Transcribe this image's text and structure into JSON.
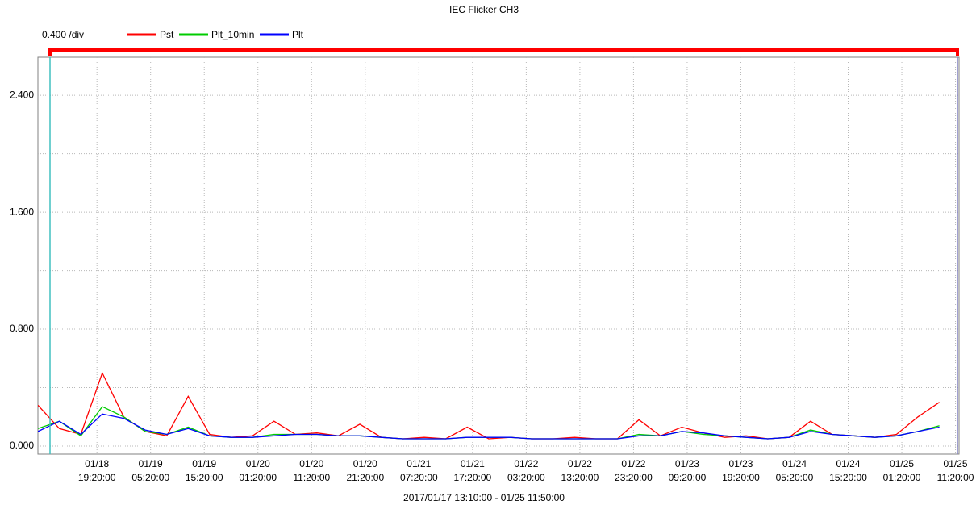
{
  "chart_data": {
    "type": "line",
    "title": "IEC Flicker  CH3",
    "scale_label": "0.400  /div",
    "xlabel": "2017/01/17 13:10:00 - 01/25 11:50:00",
    "x": [
      "01/18 08:20:00",
      "01/18 12:20:00",
      "01/18 16:20:00",
      "01/18 20:20:00",
      "01/19 00:20:00",
      "01/19 04:20:00",
      "01/19 08:20:00",
      "01/19 12:20:00",
      "01/19 16:20:00",
      "01/19 20:20:00",
      "01/20 00:20:00",
      "01/20 04:20:00",
      "01/20 08:20:00",
      "01/20 12:20:00",
      "01/20 16:20:00",
      "01/20 20:20:00",
      "01/21 00:20:00",
      "01/21 04:20:00",
      "01/21 08:20:00",
      "01/21 12:20:00",
      "01/21 16:20:00",
      "01/21 20:20:00",
      "01/22 00:20:00",
      "01/22 04:20:00",
      "01/22 08:20:00",
      "01/22 12:20:00",
      "01/22 16:20:00",
      "01/22 20:20:00",
      "01/23 00:20:00",
      "01/23 04:20:00",
      "01/23 08:20:00",
      "01/23 12:20:00",
      "01/23 16:20:00",
      "01/23 20:20:00",
      "01/24 00:20:00",
      "01/24 04:20:00",
      "01/24 08:20:00",
      "01/24 12:20:00",
      "01/24 16:20:00",
      "01/24 20:20:00",
      "01/25 00:20:00",
      "01/25 04:20:00",
      "01/25 08:20:00"
    ],
    "series": [
      {
        "name": "Pst",
        "color": "#ff0000",
        "values": [
          0.28,
          0.12,
          0.08,
          0.5,
          0.2,
          0.1,
          0.07,
          0.34,
          0.08,
          0.06,
          0.07,
          0.17,
          0.08,
          0.09,
          0.07,
          0.15,
          0.06,
          0.05,
          0.06,
          0.05,
          0.13,
          0.05,
          0.06,
          0.05,
          0.05,
          0.06,
          0.05,
          0.05,
          0.18,
          0.07,
          0.13,
          0.09,
          0.06,
          0.07,
          0.05,
          0.06,
          0.17,
          0.08,
          0.07,
          0.06,
          0.08,
          0.2,
          0.3
        ]
      },
      {
        "name": "Plt_10min",
        "color": "#00cc00",
        "values": [
          0.12,
          0.17,
          0.07,
          0.27,
          0.2,
          0.1,
          0.08,
          0.13,
          0.07,
          0.06,
          0.06,
          0.08,
          0.08,
          0.08,
          0.07,
          0.07,
          0.06,
          0.05,
          0.05,
          0.05,
          0.06,
          0.06,
          0.06,
          0.05,
          0.05,
          0.05,
          0.05,
          0.05,
          0.08,
          0.07,
          0.1,
          0.08,
          0.07,
          0.06,
          0.05,
          0.06,
          0.11,
          0.08,
          0.07,
          0.06,
          0.07,
          0.1,
          0.14
        ]
      },
      {
        "name": "Plt",
        "color": "#0000ff",
        "values": [
          0.1,
          0.17,
          0.08,
          0.22,
          0.19,
          0.11,
          0.08,
          0.12,
          0.07,
          0.06,
          0.06,
          0.07,
          0.08,
          0.08,
          0.07,
          0.07,
          0.06,
          0.05,
          0.05,
          0.05,
          0.06,
          0.06,
          0.06,
          0.05,
          0.05,
          0.05,
          0.05,
          0.05,
          0.07,
          0.07,
          0.1,
          0.09,
          0.07,
          0.06,
          0.05,
          0.06,
          0.1,
          0.08,
          0.07,
          0.06,
          0.07,
          0.1,
          0.13
        ]
      }
    ],
    "xlim": [
      "01/18 08:20:00",
      "01/25 12:00:00"
    ],
    "xticks": [
      "01/18 19:20:00",
      "01/19 05:20:00",
      "01/19 15:20:00",
      "01/20 01:20:00",
      "01/20 11:20:00",
      "01/20 21:20:00",
      "01/21 07:20:00",
      "01/21 17:20:00",
      "01/22 03:20:00",
      "01/22 13:20:00",
      "01/22 23:20:00",
      "01/23 09:20:00",
      "01/23 19:20:00",
      "01/24 05:20:00",
      "01/24 15:20:00",
      "01/25 01:20:00",
      "01/25 11:20:00"
    ],
    "ylim": [
      -0.055,
      2.66
    ],
    "yticks": [
      {
        "value": 0,
        "label": "0.000"
      },
      {
        "value": 0.8,
        "label": "0.800"
      },
      {
        "value": 1.6,
        "label": "1.600"
      },
      {
        "value": 2.4,
        "label": "2.400"
      }
    ],
    "minor_yticks": [
      0.4,
      1.2,
      2.0
    ],
    "grid": true
  }
}
